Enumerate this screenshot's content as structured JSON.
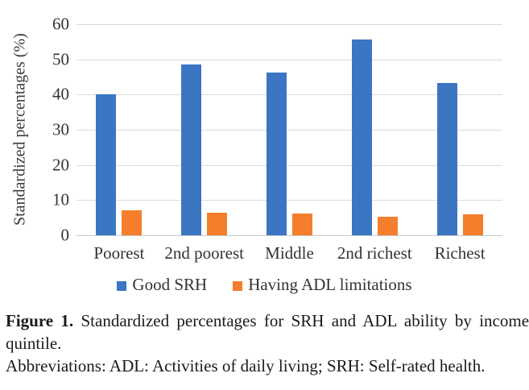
{
  "figure": {
    "caption_label": "Figure 1.",
    "caption_text": "Standardized percentages for SRH and ADL ability by income quintile.",
    "abbreviations": "Abbreviations: ADL: Activities of daily living; SRH: Self-rated health."
  },
  "chart_data": {
    "type": "bar",
    "title": "",
    "xlabel": "",
    "ylabel": "Standardized percentages (%)",
    "ylim": [
      0,
      60
    ],
    "yticks": [
      0,
      10,
      20,
      30,
      40,
      50,
      60
    ],
    "grid": "horizontal",
    "legend_position": "bottom",
    "categories": [
      "Poorest",
      "2nd poorest",
      "Middle",
      "2nd richest",
      "Richest"
    ],
    "series": [
      {
        "name": "Good SRH",
        "color": "#3c75c2",
        "values": [
          40.0,
          48.5,
          46.2,
          55.6,
          43.4
        ]
      },
      {
        "name": "Having ADL limitations",
        "color": "#f47e2c",
        "values": [
          7.1,
          6.4,
          6.2,
          5.3,
          6.0
        ]
      }
    ],
    "colors": {
      "good_srh": "#3c75c2",
      "adl_limitations": "#f47e2c",
      "gridline": "#dadada"
    }
  }
}
